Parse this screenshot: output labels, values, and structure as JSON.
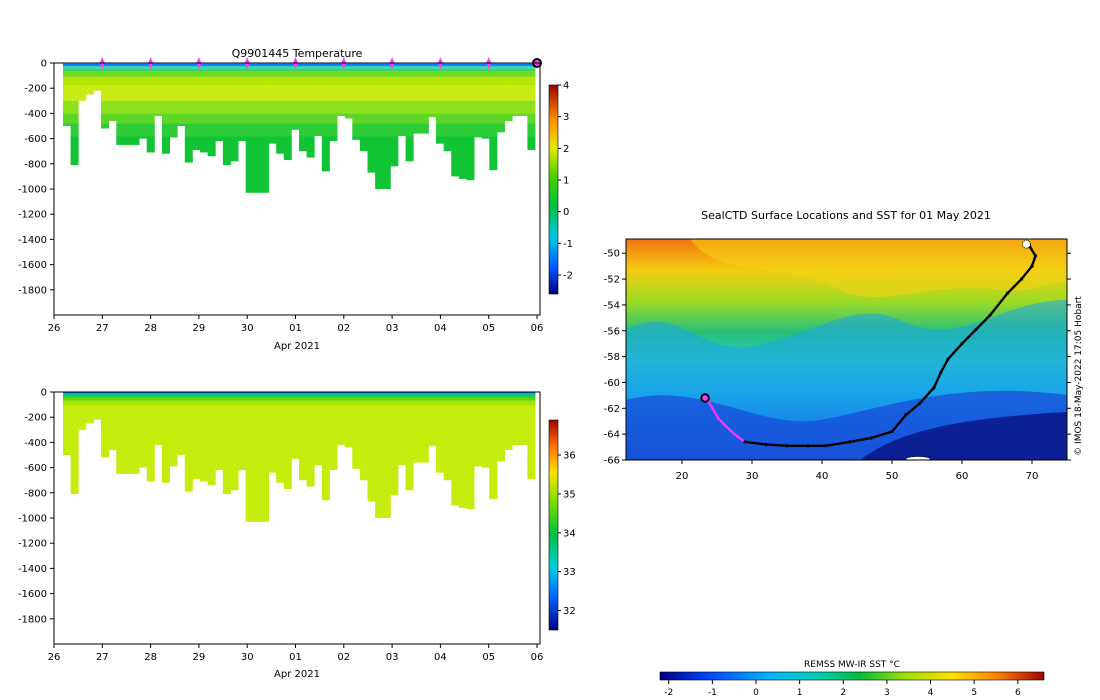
{
  "chart_data": [
    {
      "type": "heatmap",
      "title": "Q9901445  Temperature",
      "xlabel": "Apr 2021",
      "ylabel": "",
      "x_ticks": [
        "26",
        "27",
        "28",
        "29",
        "30",
        "01",
        "02",
        "03",
        "04",
        "05",
        "06"
      ],
      "y_ticks": [
        0,
        -200,
        -400,
        -600,
        -800,
        -1000,
        -1200,
        -1400,
        -1600,
        -1800
      ],
      "ylim": [
        -2000,
        0
      ],
      "colorbar": {
        "min": -2.6,
        "max": 4,
        "ticks": [
          4,
          3,
          2,
          1,
          0,
          -1,
          -2
        ]
      },
      "profile_max_depth": [
        500,
        810,
        300,
        250,
        220,
        520,
        460,
        650,
        650,
        650,
        600,
        710,
        420,
        720,
        590,
        500,
        790,
        690,
        710,
        740,
        620,
        810,
        780,
        620,
        1030,
        1030,
        1030,
        640,
        720,
        770,
        530,
        700,
        750,
        580,
        860,
        620,
        420,
        440,
        610,
        700,
        870,
        1000,
        1000,
        820,
        580,
        780,
        560,
        560,
        430,
        640,
        700,
        900,
        920,
        930,
        590,
        600,
        850,
        550,
        460,
        420,
        420,
        690
      ],
      "profile_marker_dates": [
        "27",
        "28",
        "29",
        "30",
        "01",
        "02",
        "03",
        "04",
        "05"
      ]
    },
    {
      "type": "heatmap",
      "title": "",
      "xlabel": "Apr 2021",
      "ylabel": "",
      "x_ticks": [
        "26",
        "27",
        "28",
        "29",
        "30",
        "01",
        "02",
        "03",
        "04",
        "05",
        "06"
      ],
      "y_ticks": [
        0,
        -200,
        -400,
        -600,
        -800,
        -1000,
        -1200,
        -1400,
        -1600,
        -1800
      ],
      "ylim": [
        -2000,
        0
      ],
      "colorbar": {
        "min": 31.5,
        "max": 36.9,
        "ticks": [
          36,
          35,
          34,
          33,
          32
        ]
      },
      "profile_max_depth": [
        500,
        810,
        300,
        250,
        220,
        520,
        460,
        650,
        650,
        650,
        600,
        710,
        420,
        720,
        590,
        500,
        790,
        690,
        710,
        740,
        620,
        810,
        780,
        620,
        1030,
        1030,
        1030,
        640,
        720,
        770,
        530,
        700,
        750,
        580,
        860,
        620,
        420,
        440,
        610,
        700,
        870,
        1000,
        1000,
        820,
        580,
        780,
        560,
        560,
        430,
        640,
        700,
        900,
        920,
        930,
        590,
        600,
        850,
        550,
        460,
        420,
        420,
        690
      ]
    },
    {
      "type": "heatmap",
      "title": "SealCTD Surface Locations and SST for 01 May 2021",
      "xlabel": "",
      "ylabel": "",
      "x_ticks": [
        20,
        30,
        40,
        50,
        60,
        70
      ],
      "y_ticks": [
        -50,
        -52,
        -54,
        -56,
        -58,
        -60,
        -62,
        -64,
        -66
      ],
      "xlim": [
        12,
        75
      ],
      "ylim": [
        -66,
        -48.9
      ],
      "colorbar": {
        "label": "REMSS MW-IR SST °C",
        "min": -2.2,
        "max": 6.6,
        "ticks": [
          -2,
          -1,
          0,
          1,
          2,
          3,
          4,
          5,
          6
        ]
      },
      "track_black": [
        [
          29,
          -64.6
        ],
        [
          32,
          -64.8
        ],
        [
          35,
          -64.9
        ],
        [
          38,
          -64.9
        ],
        [
          40.5,
          -64.9
        ],
        [
          44,
          -64.6
        ],
        [
          47,
          -64.3
        ],
        [
          50,
          -63.8
        ],
        [
          52,
          -62.5
        ],
        [
          54,
          -61.6
        ],
        [
          56,
          -60.4
        ],
        [
          57,
          -59.2
        ],
        [
          58,
          -58.2
        ],
        [
          60,
          -57.0
        ],
        [
          62,
          -55.9
        ],
        [
          64,
          -54.8
        ],
        [
          66.5,
          -53.1
        ],
        [
          68.5,
          -52.0
        ],
        [
          70,
          -51.0
        ],
        [
          70.5,
          -50.2
        ],
        [
          69.7,
          -49.5
        ],
        [
          69.2,
          -49.3
        ]
      ],
      "track_magenta": [
        [
          23.6,
          -61.3
        ],
        [
          25.2,
          -62.8
        ],
        [
          26.3,
          -63.4
        ],
        [
          27.3,
          -63.9
        ],
        [
          28.2,
          -64.3
        ],
        [
          29,
          -64.6
        ]
      ],
      "start_marker": [
        23.3,
        -61.2
      ]
    }
  ],
  "side_text": "© IMOS 18-May-2022 17:05 Hobart",
  "colors": {
    "marker": "#ff33ff",
    "track": "#000000"
  }
}
